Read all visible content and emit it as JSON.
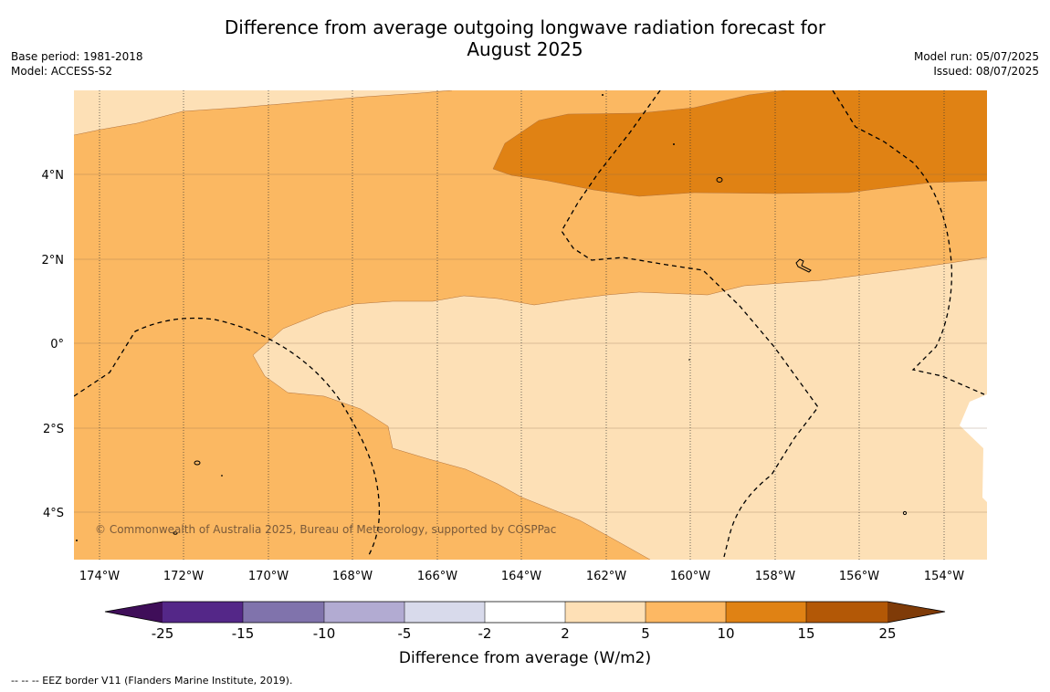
{
  "header": {
    "title_line1": "Difference from average outgoing longwave radiation forecast for",
    "title_line2": "August 2025",
    "base_period": "Base period: 1981-2018",
    "model": "Model: ACCESS-S2",
    "model_run": "Model run: 05/07/2025",
    "issued": "Issued: 08/07/2025"
  },
  "map": {
    "lat_labels": [
      "4°N",
      "2°N",
      "0°",
      "2°S",
      "4°S"
    ],
    "lon_labels": [
      "174°W",
      "172°W",
      "170°W",
      "168°W",
      "166°W",
      "164°W",
      "162°W",
      "160°W",
      "158°W",
      "156°W",
      "154°W"
    ],
    "copyright": "© Commonwealth of Australia 2025, Bureau of Meteorology, supported by COSPPac",
    "fill_colors": {
      "2_5": "#fde0b6",
      "5_10": "#fbb862",
      "10_15": "#e08214",
      "no_change": "#ffffff"
    }
  },
  "colorbar": {
    "title": "Difference from average (W/m2)",
    "ticks": [
      "-25",
      "-15",
      "-10",
      "-5",
      "-2",
      "2",
      "5",
      "10",
      "15",
      "25"
    ],
    "colors": [
      "#3f0e59",
      "#542788",
      "#8073ac",
      "#b2abd2",
      "#d8daeb",
      "#ffffff",
      "#fee0b6",
      "#fdb863",
      "#e08214",
      "#b35806",
      "#7f3b08"
    ]
  },
  "footer": {
    "legend_text": "--  --  -- EEZ border V11 (Flanders Marine Institute, 2019)."
  }
}
